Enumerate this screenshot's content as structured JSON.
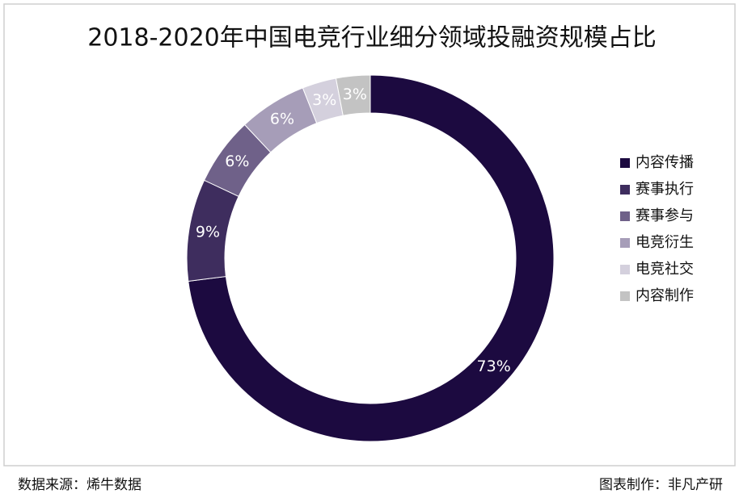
{
  "chart_data": {
    "type": "donut",
    "title": "2018-2020年中国电竞行业细分领域投融资规模占比",
    "categories": [
      "内容传播",
      "赛事执行",
      "赛事参与",
      "电竞衍生",
      "电竞社交",
      "内容制作"
    ],
    "values": [
      73,
      9,
      6,
      6,
      3,
      3
    ],
    "value_labels": [
      "73%",
      "9%",
      "6%",
      "6%",
      "3%",
      "3%"
    ],
    "colors": [
      "#1c0a40",
      "#3e2d5e",
      "#6f6189",
      "#a69db8",
      "#d4d0dd",
      "#c3c3c3"
    ],
    "legend": "right"
  },
  "footer": {
    "source": "数据来源：烯牛数据",
    "credit": "图表制作：非凡产研"
  }
}
